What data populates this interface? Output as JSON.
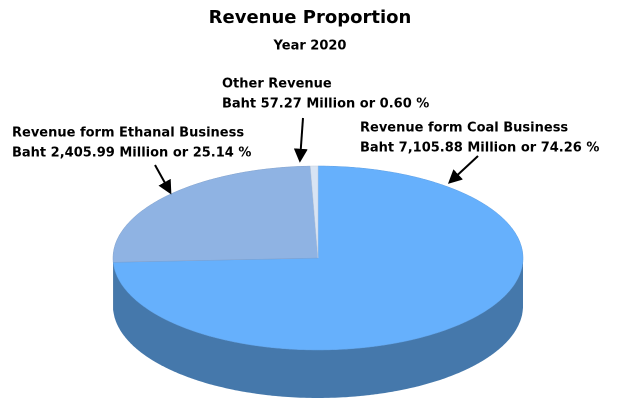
{
  "chart_data": {
    "type": "pie3d",
    "title": "Revenue Proportion",
    "subtitle": "Year 2020",
    "categories": [
      "Revenue form Coal Business",
      "Revenue form Ethanal Business",
      "Other Revenue"
    ],
    "values": [
      74.26,
      25.14,
      0.6
    ],
    "value_labels": [
      "Baht 7,105.88 Million or 74.26 %",
      "Baht 2,405.99 Million or 25.14 %",
      "Baht 57.27 Million or 0.60 %"
    ],
    "colors": [
      "#66b0fc",
      "#8fb3e3",
      "#d8e4f4"
    ]
  }
}
